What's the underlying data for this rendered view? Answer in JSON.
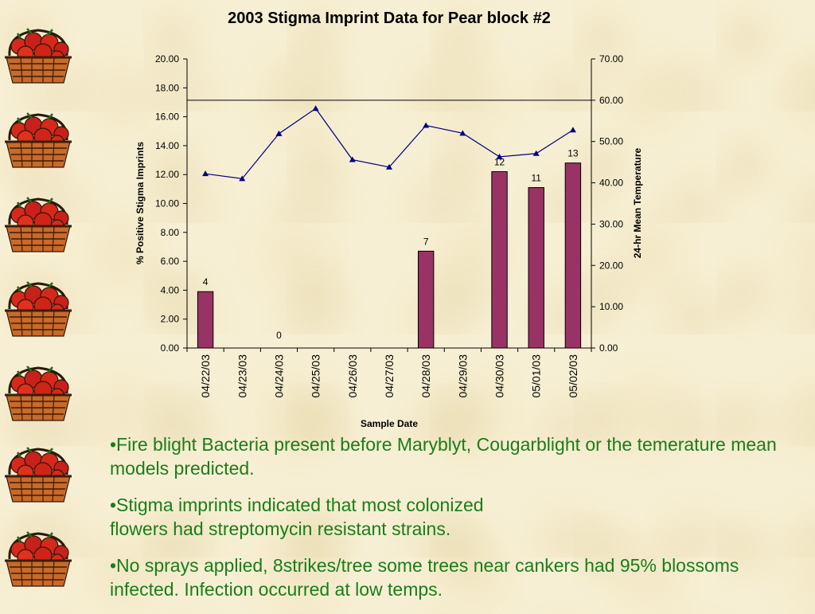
{
  "chart_data": {
    "type": "bar+line",
    "title": "2003 Stigma Imprint Data for Pear block #2",
    "xlabel": "Sample Date",
    "ylabel": "% Positive Stigma Imprints",
    "y2label": "24-hr Mean Temperature",
    "categories": [
      "04/22/03",
      "04/23/03",
      "04/24/03",
      "04/25/03",
      "04/26/03",
      "04/27/03",
      "04/28/03",
      "04/29/03",
      "04/30/03",
      "05/01/03",
      "05/02/03"
    ],
    "ylim": [
      0,
      20
    ],
    "yticks": [
      "0.00",
      "2.00",
      "4.00",
      "6.00",
      "8.00",
      "10.00",
      "12.00",
      "14.00",
      "16.00",
      "18.00",
      "20.00"
    ],
    "y2lim": [
      0,
      70
    ],
    "y2ticks": [
      "0.00",
      "10.00",
      "20.00",
      "30.00",
      "40.00",
      "50.00",
      "60.00",
      "70.00"
    ],
    "series": [
      {
        "kind": "bar",
        "axis": "left",
        "color": "#993366",
        "values": [
          3.9,
          null,
          0,
          null,
          null,
          null,
          6.7,
          null,
          12.2,
          11.1,
          12.8
        ],
        "labels": [
          "4",
          "",
          "0",
          "",
          "",
          "",
          "7",
          "",
          "12",
          "11",
          "13"
        ]
      },
      {
        "kind": "line",
        "axis": "right",
        "color": "#000080",
        "values": [
          42.2,
          41.0,
          51.9,
          58.0,
          45.6,
          43.8,
          53.9,
          52.0,
          46.3,
          47.1,
          52.8
        ]
      }
    ],
    "reference_line": {
      "axis": "right",
      "value": 60
    },
    "grid": false,
    "legend": "none"
  },
  "decoration": {
    "icon": "apple-basket-icon",
    "count": 7
  },
  "notes": [
    "•Fire blight Bacteria present before Maryblyt, Cougarblight or the temerature mean models predicted.",
    "•Stigma imprints indicated that most colonized\n flowers had streptomycin resistant strains.",
    "•No sprays applied, 8strikes/tree some trees near cankers had 95% blossoms infected.  Infection occurred at low temps."
  ]
}
